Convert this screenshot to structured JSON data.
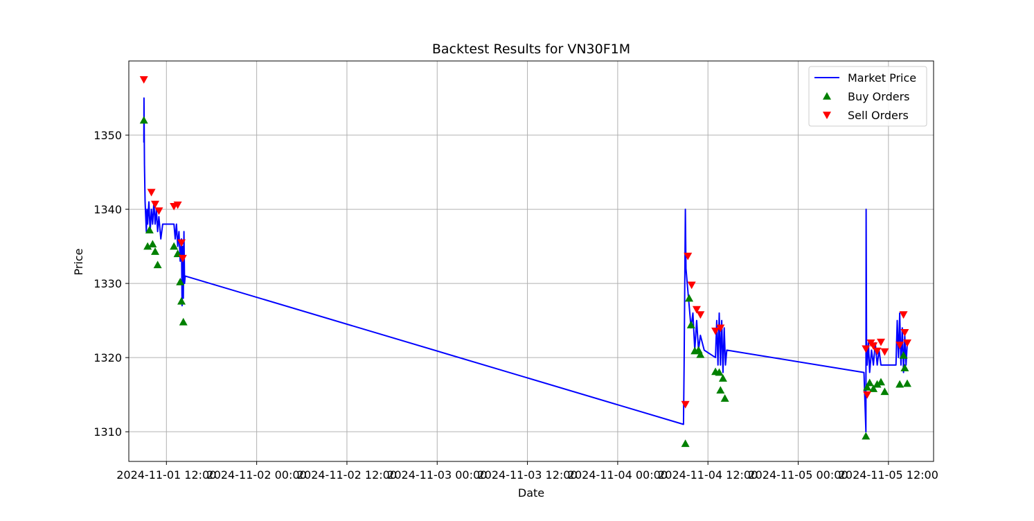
{
  "chart_data": {
    "type": "line",
    "title": "Backtest Results for VN30F1M",
    "xlabel": "Date",
    "ylabel": "Price",
    "xlim": [
      "2024-11-01 07:00",
      "2024-11-05 18:00"
    ],
    "ylim": [
      1306,
      1360
    ],
    "grid": true,
    "legend_position": "top-right",
    "x_ticks": [
      {
        "x": "2024-11-01 12:00",
        "label": "2024-11-01 12:00"
      },
      {
        "x": "2024-11-02 00:00",
        "label": "2024-11-02 00:00"
      },
      {
        "x": "2024-11-02 12:00",
        "label": "2024-11-02 12:00"
      },
      {
        "x": "2024-11-03 00:00",
        "label": "2024-11-03 00:00"
      },
      {
        "x": "2024-11-03 12:00",
        "label": "2024-11-03 12:00"
      },
      {
        "x": "2024-11-04 00:00",
        "label": "2024-11-04 00:00"
      },
      {
        "x": "2024-11-04 12:00",
        "label": "2024-11-04 12:00"
      },
      {
        "x": "2024-11-05 00:00",
        "label": "2024-11-05 00:00"
      },
      {
        "x": "2024-11-05 12:00",
        "label": "2024-11-05 12:00"
      }
    ],
    "y_ticks": [
      1310,
      1320,
      1330,
      1340,
      1350
    ],
    "series": [
      {
        "name": "Market Price",
        "kind": "line",
        "color": "#0000ff",
        "points": [
          [
            "2024-11-01 09:00",
            1349
          ],
          [
            "2024-11-01 09:01",
            1355
          ],
          [
            "2024-11-01 09:05",
            1346
          ],
          [
            "2024-11-01 09:10",
            1341
          ],
          [
            "2024-11-01 09:15",
            1339
          ],
          [
            "2024-11-01 09:20",
            1337
          ],
          [
            "2024-11-01 09:25",
            1340
          ],
          [
            "2024-11-01 09:30",
            1338
          ],
          [
            "2024-11-01 09:40",
            1341
          ],
          [
            "2024-11-01 09:50",
            1337
          ],
          [
            "2024-11-01 10:00",
            1340
          ],
          [
            "2024-11-01 10:10",
            1338
          ],
          [
            "2024-11-01 10:20",
            1341
          ],
          [
            "2024-11-01 10:30",
            1338
          ],
          [
            "2024-11-01 10:40",
            1340
          ],
          [
            "2024-11-01 10:50",
            1337
          ],
          [
            "2024-11-01 11:00",
            1339
          ],
          [
            "2024-11-01 11:15",
            1336
          ],
          [
            "2024-11-01 11:30",
            1338
          ],
          [
            "2024-11-01 13:00",
            1338
          ],
          [
            "2024-11-01 13:10",
            1336
          ],
          [
            "2024-11-01 13:20",
            1338
          ],
          [
            "2024-11-01 13:30",
            1335
          ],
          [
            "2024-11-01 13:40",
            1337
          ],
          [
            "2024-11-01 13:50",
            1333
          ],
          [
            "2024-11-01 14:00",
            1336
          ],
          [
            "2024-11-01 14:05",
            1327
          ],
          [
            "2024-11-01 14:10",
            1335
          ],
          [
            "2024-11-01 14:15",
            1328
          ],
          [
            "2024-11-01 14:20",
            1337
          ],
          [
            "2024-11-01 14:25",
            1330
          ],
          [
            "2024-11-01 14:30",
            1331
          ],
          [
            "2024-11-04 08:45",
            1311
          ],
          [
            "2024-11-04 08:50",
            1319
          ],
          [
            "2024-11-04 09:00",
            1340
          ],
          [
            "2024-11-04 09:05",
            1332
          ],
          [
            "2024-11-04 09:15",
            1330
          ],
          [
            "2024-11-04 09:30",
            1327
          ],
          [
            "2024-11-04 09:45",
            1324
          ],
          [
            "2024-11-04 10:00",
            1326
          ],
          [
            "2024-11-04 10:15",
            1321
          ],
          [
            "2024-11-04 10:30",
            1325
          ],
          [
            "2024-11-04 10:45",
            1321
          ],
          [
            "2024-11-04 11:00",
            1323
          ],
          [
            "2024-11-04 11:30",
            1321
          ],
          [
            "2024-11-04 13:00",
            1320
          ],
          [
            "2024-11-04 13:10",
            1325
          ],
          [
            "2024-11-04 13:20",
            1319
          ],
          [
            "2024-11-04 13:30",
            1326
          ],
          [
            "2024-11-04 13:40",
            1319
          ],
          [
            "2024-11-04 13:50",
            1325
          ],
          [
            "2024-11-04 14:00",
            1318
          ],
          [
            "2024-11-04 14:10",
            1324
          ],
          [
            "2024-11-04 14:20",
            1319
          ],
          [
            "2024-11-04 14:30",
            1321
          ],
          [
            "2024-11-05 08:45",
            1318
          ],
          [
            "2024-11-05 09:00",
            1310
          ],
          [
            "2024-11-05 09:02",
            1340
          ],
          [
            "2024-11-05 09:05",
            1322
          ],
          [
            "2024-11-05 09:10",
            1319
          ],
          [
            "2024-11-05 09:20",
            1322
          ],
          [
            "2024-11-05 09:30",
            1318
          ],
          [
            "2024-11-05 09:45",
            1321
          ],
          [
            "2024-11-05 10:00",
            1319
          ],
          [
            "2024-11-05 10:15",
            1322
          ],
          [
            "2024-11-05 10:30",
            1319
          ],
          [
            "2024-11-05 10:45",
            1321
          ],
          [
            "2024-11-05 11:00",
            1319
          ],
          [
            "2024-11-05 11:30",
            1319
          ],
          [
            "2024-11-05 13:00",
            1319
          ],
          [
            "2024-11-05 13:10",
            1325
          ],
          [
            "2024-11-05 13:20",
            1320
          ],
          [
            "2024-11-05 13:30",
            1326
          ],
          [
            "2024-11-05 13:40",
            1319
          ],
          [
            "2024-11-05 13:50",
            1324
          ],
          [
            "2024-11-05 14:00",
            1318
          ],
          [
            "2024-11-05 14:10",
            1323
          ],
          [
            "2024-11-05 14:20",
            1319
          ],
          [
            "2024-11-05 14:30",
            1322
          ]
        ]
      },
      {
        "name": "Buy Orders",
        "kind": "marker",
        "marker": "triangle-up",
        "color": "#008000",
        "points": [
          [
            "2024-11-01 09:00",
            1352.0
          ],
          [
            "2024-11-01 09:30",
            1335.0
          ],
          [
            "2024-11-01 09:45",
            1337.2
          ],
          [
            "2024-11-01 10:10",
            1335.3
          ],
          [
            "2024-11-01 10:30",
            1334.3
          ],
          [
            "2024-11-01 10:50",
            1332.5
          ],
          [
            "2024-11-01 13:00",
            1335.0
          ],
          [
            "2024-11-01 13:30",
            1334.0
          ],
          [
            "2024-11-01 13:50",
            1330.2
          ],
          [
            "2024-11-01 14:00",
            1327.6
          ],
          [
            "2024-11-01 14:15",
            1324.8
          ],
          [
            "2024-11-04 09:00",
            1308.4
          ],
          [
            "2024-11-04 09:30",
            1328.0
          ],
          [
            "2024-11-04 09:45",
            1324.4
          ],
          [
            "2024-11-04 10:15",
            1320.9
          ],
          [
            "2024-11-04 10:45",
            1321.0
          ],
          [
            "2024-11-04 11:00",
            1320.4
          ],
          [
            "2024-11-04 13:00",
            1318.1
          ],
          [
            "2024-11-04 13:30",
            1318.0
          ],
          [
            "2024-11-04 13:40",
            1315.6
          ],
          [
            "2024-11-04 14:00",
            1317.2
          ],
          [
            "2024-11-04 14:15",
            1314.5
          ],
          [
            "2024-11-05 09:00",
            1309.4
          ],
          [
            "2024-11-05 09:10",
            1316.0
          ],
          [
            "2024-11-05 09:30",
            1316.6
          ],
          [
            "2024-11-05 10:00",
            1315.8
          ],
          [
            "2024-11-05 10:30",
            1316.4
          ],
          [
            "2024-11-05 11:00",
            1316.7
          ],
          [
            "2024-11-05 11:30",
            1315.4
          ],
          [
            "2024-11-05 13:30",
            1316.4
          ],
          [
            "2024-11-05 14:00",
            1320.3
          ],
          [
            "2024-11-05 14:10",
            1318.6
          ],
          [
            "2024-11-05 14:30",
            1316.5
          ]
        ]
      },
      {
        "name": "Sell Orders",
        "kind": "marker",
        "marker": "triangle-down",
        "color": "#ff0000",
        "points": [
          [
            "2024-11-01 09:00",
            1357.5
          ],
          [
            "2024-11-01 10:00",
            1342.3
          ],
          [
            "2024-11-01 10:30",
            1340.7
          ],
          [
            "2024-11-01 11:00",
            1339.8
          ],
          [
            "2024-11-01 13:00",
            1340.4
          ],
          [
            "2024-11-01 13:30",
            1340.6
          ],
          [
            "2024-11-01 14:00",
            1335.5
          ],
          [
            "2024-11-01 14:10",
            1333.4
          ],
          [
            "2024-11-04 09:00",
            1313.7
          ],
          [
            "2024-11-04 09:20",
            1333.7
          ],
          [
            "2024-11-04 09:50",
            1329.8
          ],
          [
            "2024-11-04 10:30",
            1326.5
          ],
          [
            "2024-11-04 11:00",
            1325.8
          ],
          [
            "2024-11-04 13:00",
            1323.6
          ],
          [
            "2024-11-04 13:40",
            1324.0
          ],
          [
            "2024-11-05 09:00",
            1321.2
          ],
          [
            "2024-11-05 09:10",
            1315.0
          ],
          [
            "2024-11-05 09:40",
            1322.0
          ],
          [
            "2024-11-05 10:00",
            1321.6
          ],
          [
            "2024-11-05 10:30",
            1320.9
          ],
          [
            "2024-11-05 11:00",
            1322.1
          ],
          [
            "2024-11-05 11:30",
            1320.8
          ],
          [
            "2024-11-05 13:30",
            1321.7
          ],
          [
            "2024-11-05 14:00",
            1325.8
          ],
          [
            "2024-11-05 14:10",
            1323.4
          ],
          [
            "2024-11-05 14:30",
            1322.0
          ]
        ]
      }
    ]
  }
}
